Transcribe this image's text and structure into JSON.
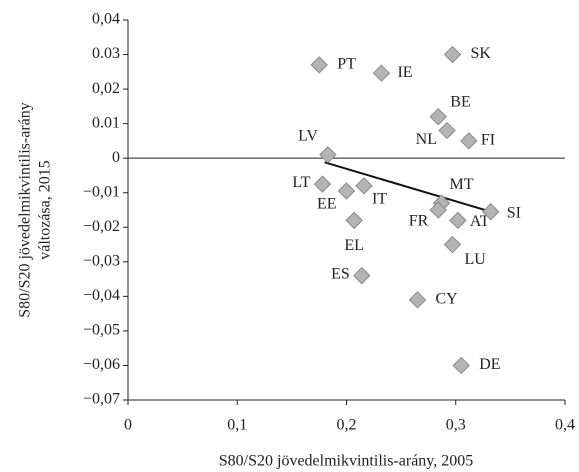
{
  "chart_data": {
    "type": "scatter",
    "x_label": "S80/S20 jövedelmikvintilis-arány, 2005",
    "y_label": [
      "S80/S20 jövedelmikvintilis-arány",
      "változása, 2015"
    ],
    "xlim": [
      0,
      0.4
    ],
    "xticks": [
      0,
      {
        "value": 0.1,
        "label": "0,1"
      },
      {
        "value": 0.2,
        "label": "0,2"
      },
      {
        "value": 0.3,
        "label": "0,3"
      },
      {
        "value": 0.4,
        "label": "0,4"
      }
    ],
    "ylim": [
      -0.07,
      0.04
    ],
    "yticks": [
      {
        "value": 0.04,
        "label": "0,04"
      },
      {
        "value": 0.03,
        "label": "0.03"
      },
      {
        "value": 0.02,
        "label": "0,02"
      },
      {
        "value": 0.01,
        "label": "0.01"
      },
      0,
      {
        "value": -0.01,
        "label": "−0,01"
      },
      {
        "value": -0.02,
        "label": "−0,02"
      },
      {
        "value": -0.03,
        "label": "−0,03"
      },
      {
        "value": -0.04,
        "label": "−0,04"
      },
      {
        "value": -0.05,
        "label": "−0,05"
      },
      {
        "value": -0.06,
        "label": "−0,06"
      },
      {
        "value": -0.07,
        "label": "−0,07"
      }
    ],
    "color": "#b4b4b4",
    "labels": [
      "PT",
      "IE",
      "SK",
      "BE",
      "NL",
      "FI",
      "LV",
      "LT",
      "EE",
      "IT",
      "EL",
      "MT",
      "FR",
      "AT",
      "SI",
      "LU",
      "ES",
      "CY",
      "DE"
    ],
    "x": [
      0.175,
      0.232,
      0.297,
      0.284,
      0.292,
      0.312,
      0.183,
      0.178,
      0.2,
      0.216,
      0.207,
      0.287,
      0.284,
      0.302,
      0.332,
      0.297,
      0.214,
      0.265,
      0.305
    ],
    "y": [
      0.027,
      0.0246,
      0.03,
      0.012,
      0.008,
      0.005,
      0.001,
      -0.0075,
      -0.0095,
      -0.008,
      -0.018,
      -0.013,
      -0.015,
      -0.018,
      -0.0155,
      -0.025,
      -0.034,
      -0.041,
      -0.06
    ],
    "trend_line": {
      "x": [
        0.18,
        0.332
      ],
      "y": [
        -0.0012,
        -0.0155
      ]
    }
  }
}
